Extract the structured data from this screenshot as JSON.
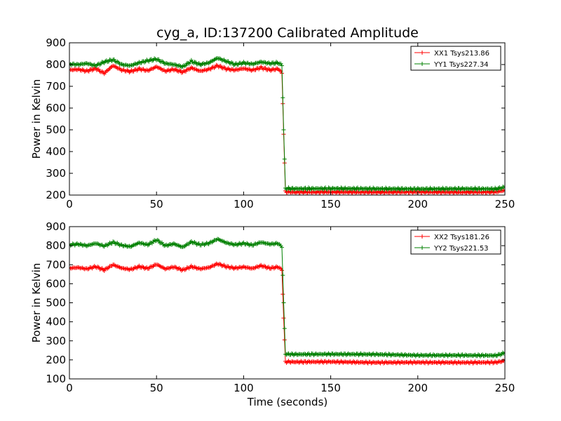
{
  "chart_data": [
    {
      "type": "line",
      "title": "cyg_a, ID:137200 Calibrated Amplitude",
      "xlabel": "",
      "ylabel": "Power in Kelvin",
      "xlim": [
        0,
        250
      ],
      "ylim": [
        200,
        900
      ],
      "xticks": [
        0,
        50,
        100,
        150,
        200,
        250
      ],
      "yticks": [
        200,
        300,
        400,
        500,
        600,
        700,
        800,
        900
      ],
      "legend_position": "top-right",
      "grid": false,
      "marker": "plus",
      "series": [
        {
          "name": "XX1 Tsys213.86",
          "color": "#ff0000",
          "points": [
            [
              0,
              775
            ],
            [
              5,
              778
            ],
            [
              10,
              770
            ],
            [
              15,
              782
            ],
            [
              20,
              760
            ],
            [
              25,
              795
            ],
            [
              30,
              775
            ],
            [
              35,
              768
            ],
            [
              40,
              780
            ],
            [
              45,
              772
            ],
            [
              50,
              790
            ],
            [
              55,
              770
            ],
            [
              60,
              778
            ],
            [
              65,
              765
            ],
            [
              70,
              785
            ],
            [
              75,
              770
            ],
            [
              80,
              778
            ],
            [
              85,
              795
            ],
            [
              90,
              780
            ],
            [
              95,
              775
            ],
            [
              100,
              782
            ],
            [
              105,
              774
            ],
            [
              110,
              786
            ],
            [
              115,
              775
            ],
            [
              120,
              780
            ],
            [
              122,
              760
            ],
            [
              123,
              480
            ],
            [
              124,
              215
            ],
            [
              130,
              213
            ],
            [
              150,
              214
            ],
            [
              175,
              213
            ],
            [
              200,
              214
            ],
            [
              225,
              213
            ],
            [
              245,
              214
            ],
            [
              250,
              222
            ]
          ]
        },
        {
          "name": "YY1 Tsys227.34",
          "color": "#008000",
          "points": [
            [
              0,
              802
            ],
            [
              5,
              800
            ],
            [
              10,
              805
            ],
            [
              15,
              795
            ],
            [
              20,
              812
            ],
            [
              25,
              822
            ],
            [
              30,
              800
            ],
            [
              35,
              795
            ],
            [
              40,
              808
            ],
            [
              45,
              818
            ],
            [
              50,
              825
            ],
            [
              55,
              805
            ],
            [
              60,
              800
            ],
            [
              65,
              790
            ],
            [
              70,
              815
            ],
            [
              75,
              800
            ],
            [
              80,
              808
            ],
            [
              85,
              830
            ],
            [
              90,
              815
            ],
            [
              95,
              800
            ],
            [
              100,
              808
            ],
            [
              105,
              802
            ],
            [
              110,
              812
            ],
            [
              115,
              805
            ],
            [
              120,
              808
            ],
            [
              122,
              795
            ],
            [
              123,
              500
            ],
            [
              124,
              230
            ],
            [
              130,
              229
            ],
            [
              150,
              230
            ],
            [
              175,
              229
            ],
            [
              200,
              228
            ],
            [
              225,
              229
            ],
            [
              245,
              228
            ],
            [
              250,
              236
            ]
          ]
        }
      ]
    },
    {
      "type": "line",
      "title": "",
      "xlabel": "Time (seconds)",
      "ylabel": "Power in Kelvin",
      "xlim": [
        0,
        250
      ],
      "ylim": [
        100,
        900
      ],
      "xticks": [
        0,
        50,
        100,
        150,
        200,
        250
      ],
      "yticks": [
        100,
        200,
        300,
        400,
        500,
        600,
        700,
        800,
        900
      ],
      "legend_position": "top-right",
      "grid": false,
      "marker": "plus",
      "series": [
        {
          "name": "XX2 Tsys181.26",
          "color": "#ff0000",
          "points": [
            [
              0,
              682
            ],
            [
              5,
              685
            ],
            [
              10,
              678
            ],
            [
              15,
              690
            ],
            [
              20,
              672
            ],
            [
              25,
              700
            ],
            [
              30,
              682
            ],
            [
              35,
              675
            ],
            [
              40,
              690
            ],
            [
              45,
              680
            ],
            [
              50,
              702
            ],
            [
              55,
              678
            ],
            [
              60,
              688
            ],
            [
              65,
              672
            ],
            [
              70,
              690
            ],
            [
              75,
              678
            ],
            [
              80,
              685
            ],
            [
              85,
              705
            ],
            [
              90,
              690
            ],
            [
              95,
              682
            ],
            [
              100,
              688
            ],
            [
              105,
              680
            ],
            [
              110,
              695
            ],
            [
              115,
              682
            ],
            [
              120,
              688
            ],
            [
              122,
              670
            ],
            [
              123,
              420
            ],
            [
              124,
              190
            ],
            [
              130,
              189
            ],
            [
              150,
              190
            ],
            [
              175,
              186
            ],
            [
              200,
              187
            ],
            [
              225,
              186
            ],
            [
              245,
              187
            ],
            [
              250,
              195
            ]
          ]
        },
        {
          "name": "YY2 Tsys221.53",
          "color": "#008000",
          "points": [
            [
              0,
              805
            ],
            [
              5,
              808
            ],
            [
              10,
              800
            ],
            [
              15,
              812
            ],
            [
              20,
              798
            ],
            [
              25,
              818
            ],
            [
              30,
              802
            ],
            [
              35,
              795
            ],
            [
              40,
              815
            ],
            [
              45,
              805
            ],
            [
              50,
              830
            ],
            [
              55,
              800
            ],
            [
              60,
              810
            ],
            [
              65,
              792
            ],
            [
              70,
              820
            ],
            [
              75,
              805
            ],
            [
              80,
              812
            ],
            [
              85,
              835
            ],
            [
              90,
              815
            ],
            [
              95,
              805
            ],
            [
              100,
              812
            ],
            [
              105,
              803
            ],
            [
              110,
              818
            ],
            [
              115,
              808
            ],
            [
              120,
              812
            ],
            [
              122,
              790
            ],
            [
              123,
              500
            ],
            [
              124,
              230
            ],
            [
              130,
              229
            ],
            [
              150,
              230
            ],
            [
              175,
              229
            ],
            [
              200,
              224
            ],
            [
              225,
              224
            ],
            [
              245,
              223
            ],
            [
              250,
              236
            ]
          ]
        }
      ]
    }
  ]
}
